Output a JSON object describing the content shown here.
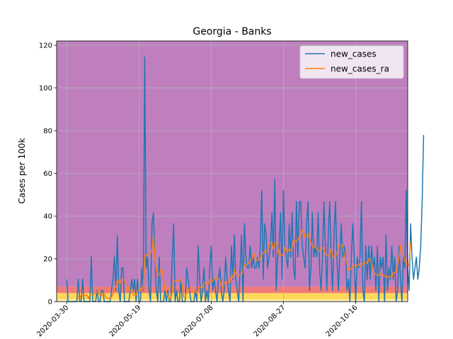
{
  "chart_data": {
    "type": "line",
    "title": "Georgia - Banks",
    "xlabel": "",
    "ylabel": "Cases per 100k",
    "x_start": "2020-03-30",
    "x_end": "2020-11-06",
    "xlim": [
      "2020-03-23",
      "2020-11-21"
    ],
    "ylim": [
      0,
      122
    ],
    "yticks": [
      0,
      20,
      40,
      60,
      80,
      100,
      120
    ],
    "xticks": [
      "2020-03-30",
      "2020-05-19",
      "2020-07-08",
      "2020-08-27",
      "2020-10-16"
    ],
    "grid": true,
    "legend_position": "top-right",
    "background_bands": [
      {
        "from": 0,
        "to": 1,
        "color": "#fff4b0"
      },
      {
        "from": 1,
        "to": 4,
        "color": "#ffd75a"
      },
      {
        "from": 4,
        "to": 7,
        "color": "#f07a78"
      },
      {
        "from": 7,
        "to": 122,
        "color": "#bf7fbf"
      }
    ],
    "series": [
      {
        "name": "new_cases",
        "color": "#1f77b4",
        "values": [
          10.4,
          0,
          0,
          0,
          0,
          0,
          0,
          0,
          10.4,
          0,
          0,
          10.4,
          0,
          0,
          0,
          0,
          0,
          21,
          0,
          0,
          0,
          5.2,
          0,
          0,
          5.2,
          5.2,
          0,
          0,
          0,
          0,
          0,
          5.2,
          10.4,
          21,
          5.2,
          31,
          5.2,
          0,
          15.7,
          15.7,
          0,
          0,
          0,
          0,
          5.2,
          10.4,
          5.2,
          10.4,
          0,
          10.4,
          0,
          0,
          15.7,
          5.2,
          114.5,
          15.7,
          20.8,
          5.2,
          0,
          36.4,
          41.6,
          20.8,
          5.2,
          0,
          20.8,
          0,
          0,
          0,
          5.2,
          0,
          5.2,
          0,
          0,
          20.8,
          36.4,
          0,
          5.2,
          0,
          0,
          10.4,
          0,
          0,
          0,
          15.7,
          10.4,
          5.2,
          0,
          0,
          0,
          5.2,
          0,
          26,
          10.4,
          0,
          5.2,
          15.7,
          0,
          5.2,
          0,
          15.7,
          26,
          5.2,
          10.4,
          5.2,
          0,
          10.4,
          15.7,
          5.2,
          0,
          5.2,
          20.8,
          10.4,
          5.2,
          0,
          26,
          10.4,
          31.2,
          10.4,
          5.2,
          0,
          15.7,
          31.2,
          0,
          36.4,
          20.8,
          15.7,
          15.7,
          26,
          15.7,
          20.8,
          15.7,
          15.7,
          20.8,
          15.7,
          26,
          52,
          10.4,
          36.4,
          31.2,
          15.7,
          20.8,
          26,
          41.6,
          20.8,
          57.2,
          5.2,
          20.8,
          26,
          41.6,
          10.4,
          52,
          26,
          20.8,
          15.7,
          36.4,
          20.8,
          41.6,
          15.7,
          10.4,
          46.8,
          20.8,
          46.8,
          46.8,
          26,
          20.8,
          15.7,
          36.4,
          46.8,
          5.2,
          15.7,
          41.6,
          20.8,
          26,
          20.8,
          41.6,
          15.7,
          5.2,
          20.8,
          46.8,
          26,
          5.2,
          31.2,
          46.8,
          20.8,
          5.2,
          31.2,
          46.8,
          20.8,
          5.2,
          20.8,
          36.4,
          20.8,
          26,
          20.8,
          5.2,
          10.4,
          0,
          20.8,
          36.4,
          20.8,
          0,
          20.8,
          15.7,
          20.8,
          46.8,
          5.2,
          0,
          26,
          10.4,
          26,
          10.4,
          26,
          15.7,
          20.8,
          5.2,
          26,
          0,
          20.8,
          15.7,
          20.8,
          0,
          31.2,
          5.2,
          15.7,
          10.4,
          26,
          10.4,
          20.8,
          0,
          5.2,
          26,
          10.4,
          0,
          20.8,
          15.7,
          52,
          15.7,
          5.2,
          36.4,
          20.8,
          10.4,
          15.7,
          20.8,
          10.4,
          15.7,
          26,
          46.8,
          78
        ]
      },
      {
        "name": "new_cases_ra",
        "color": "#ff7f0e",
        "values": [
          null,
          null,
          null,
          null,
          null,
          null,
          null,
          1.5,
          1.5,
          1.5,
          3,
          3,
          3,
          3,
          3,
          1.5,
          3,
          3,
          3,
          3.7,
          3.7,
          4.5,
          4.5,
          3,
          3,
          3,
          3.7,
          2.2,
          1.5,
          1.5,
          1.5,
          2.2,
          3.7,
          5.9,
          6.7,
          10.4,
          8.9,
          8.2,
          10.4,
          10.4,
          9.7,
          8.2,
          8.2,
          5.2,
          5.2,
          5.2,
          3,
          3,
          3,
          5.2,
          5.2,
          5.2,
          6.7,
          6,
          21.5,
          21.5,
          22.3,
          22.3,
          22.3,
          24.5,
          31,
          20.1,
          14.9,
          12,
          12.7,
          14.9,
          14.9,
          10.4,
          5.9,
          4.5,
          3,
          1.5,
          1.5,
          4.5,
          9.7,
          9.7,
          9.7,
          9.7,
          9.7,
          10.4,
          7.4,
          2.2,
          2.2,
          4.5,
          5.9,
          5.2,
          5.2,
          4.5,
          4.5,
          5.2,
          3.7,
          6,
          6.7,
          6.7,
          6.7,
          8.9,
          8.9,
          8.2,
          8.2,
          10.4,
          9.7,
          9.7,
          11.2,
          11.2,
          10.4,
          10.4,
          9.7,
          7.4,
          6.7,
          8.2,
          9.7,
          8.9,
          9,
          9,
          12.7,
          11.2,
          14.9,
          12.7,
          12.7,
          12,
          12.7,
          12.7,
          14.2,
          17.1,
          17.1,
          17.8,
          17.9,
          19.3,
          19.3,
          21.6,
          22.4,
          19.3,
          19.3,
          19.3,
          20.8,
          22.3,
          22.3,
          23.8,
          23.8,
          23.8,
          27,
          27.5,
          27.5,
          24.5,
          27,
          27.6,
          26.2,
          21.6,
          22.4,
          21.6,
          22.4,
          25.3,
          23.8,
          23.9,
          24.7,
          23.8,
          25.4,
          28.9,
          28.1,
          28.1,
          28.9,
          30.4,
          30.5,
          33.4,
          32.1,
          30.1,
          30.6,
          32.1,
          29.8,
          27.7,
          26.2,
          25.4,
          26.2,
          24.6,
          23.9,
          23.8,
          24.5,
          25.4,
          24.5,
          22.4,
          21.5,
          21.6,
          22.3,
          24.6,
          21.6,
          20.8,
          21.6,
          22.3,
          26.1,
          26.6,
          26.1,
          26.1,
          22.3,
          19.4,
          17.8,
          14.8,
          14.9,
          15.6,
          16.3,
          17.1,
          16.3,
          17,
          17.8,
          16.3,
          17.1,
          17.8,
          18.6,
          18.5,
          17.7,
          20.1,
          19.3,
          18.6,
          14.9,
          13.4,
          12.6,
          12.6,
          12,
          13.3,
          12.6,
          12.6,
          11.8,
          11.9,
          11.1,
          11.9,
          11.9,
          11.2,
          13.5,
          13.4,
          14.1,
          17.1,
          21,
          26.4,
          22.4,
          22.3,
          18.6,
          18.7,
          16.4,
          17.2,
          27.8
        ]
      }
    ]
  }
}
